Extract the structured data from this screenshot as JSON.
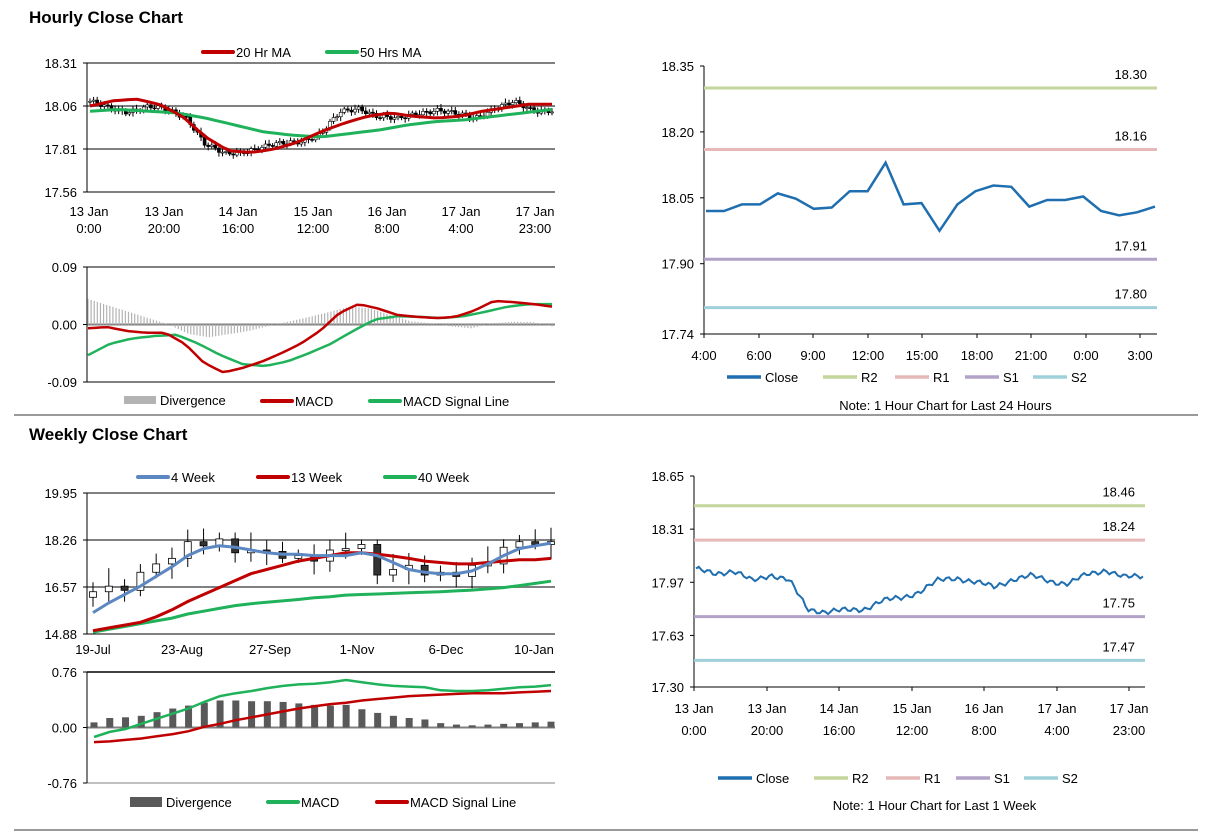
{
  "sections": {
    "hourly_title": "Hourly Close Chart",
    "weekly_title": "Weekly Close Chart"
  },
  "colors": {
    "red": "#c00000",
    "green": "#1fb25a",
    "blue": "#1f6fb0",
    "steel": "#5b87c2",
    "grid": "#808080",
    "r2": "#c3d69b",
    "r1": "#e6b9b8",
    "s1": "#b3a2c7",
    "s2": "#9fd0d9",
    "div_light": "#b3b3b3",
    "div_dark": "#595959"
  },
  "chart_data": [
    {
      "id": "hourly_price",
      "type": "candlestick",
      "title": "",
      "ylim": [
        17.56,
        18.31
      ],
      "yticks": [
        "18.31",
        "18.06",
        "17.81",
        "17.56"
      ],
      "xticks": [
        [
          "13 Jan",
          "0:00"
        ],
        [
          "13 Jan",
          "20:00"
        ],
        [
          "14 Jan",
          "16:00"
        ],
        [
          "15 Jan",
          "12:00"
        ],
        [
          "16 Jan",
          "8:00"
        ],
        [
          "17 Jan",
          "4:00"
        ],
        [
          "17 Jan",
          "23:00"
        ]
      ],
      "legend": [
        {
          "name": "20 Hr MA",
          "color": "#c00000"
        },
        {
          "name": "50 Hrs MA",
          "color": "#1fb25a"
        }
      ],
      "close_anchors": [
        18.08,
        18.05,
        18.03,
        18.05,
        18.04,
        18.0,
        17.83,
        17.78,
        17.8,
        17.82,
        17.84,
        17.86,
        17.9,
        18.02,
        18.05,
        18.0,
        17.98,
        18.02,
        18.04,
        18.01,
        17.99,
        18.05,
        18.08,
        18.03,
        18.04
      ],
      "ma20_anchors": [
        18.06,
        18.09,
        18.1,
        18.07,
        18.0,
        17.88,
        17.8,
        17.79,
        17.81,
        17.85,
        17.91,
        17.96,
        18.0,
        18.02,
        18.0,
        17.99,
        18.0,
        18.03,
        18.05,
        18.07,
        18.07
      ],
      "ma50_anchors": [
        18.03,
        18.04,
        18.03,
        18.02,
        17.99,
        17.95,
        17.91,
        17.89,
        17.88,
        17.9,
        17.92,
        17.95,
        17.97,
        17.98,
        18.0,
        18.02,
        18.04
      ]
    },
    {
      "id": "hourly_macd",
      "type": "line",
      "ylim": [
        -0.09,
        0.09
      ],
      "yticks": [
        "0.09",
        "0.00",
        "-0.09"
      ],
      "legend": [
        {
          "name": "Divergence",
          "color": "#b3b3b3"
        },
        {
          "name": "MACD",
          "color": "#c00000"
        },
        {
          "name": "MACD Signal Line",
          "color": "#1fb25a"
        }
      ],
      "macd_anchors": [
        -0.006,
        -0.004,
        -0.01,
        -0.013,
        -0.013,
        -0.03,
        -0.06,
        -0.075,
        -0.068,
        -0.058,
        -0.045,
        -0.03,
        -0.01,
        0.018,
        0.032,
        0.025,
        0.015,
        0.012,
        0.01,
        0.012,
        0.022,
        0.037,
        0.035,
        0.032,
        0.028
      ],
      "signal_anchors": [
        -0.048,
        -0.03,
        -0.022,
        -0.018,
        -0.016,
        -0.03,
        -0.048,
        -0.062,
        -0.065,
        -0.058,
        -0.045,
        -0.03,
        -0.01,
        0.008,
        0.013,
        0.012,
        0.01,
        0.013,
        0.02,
        0.028,
        0.032,
        0.032
      ],
      "divergence_anchors": [
        0.04,
        0.03,
        0.02,
        0.01,
        0.0,
        -0.015,
        -0.02,
        -0.015,
        -0.01,
        -0.002,
        0.005,
        0.012,
        0.02,
        0.028,
        0.025,
        0.015,
        0.005,
        0.002,
        -0.003,
        -0.006,
        0.002,
        0.004,
        0.004,
        -0.003
      ]
    },
    {
      "id": "hourly_sr",
      "type": "line",
      "ylim": [
        17.74,
        18.35
      ],
      "yticks": [
        "18.35",
        "18.20",
        "18.05",
        "17.90",
        "17.74"
      ],
      "xticks": [
        "4:00",
        "6:00",
        "9:00",
        "12:00",
        "15:00",
        "18:00",
        "21:00",
        "0:00",
        "3:00"
      ],
      "levels": [
        {
          "name": "R2",
          "value": 18.3,
          "label": "18.30"
        },
        {
          "name": "R1",
          "value": 18.16,
          "label": "18.16"
        },
        {
          "name": "S1",
          "value": 17.91,
          "label": "17.91"
        },
        {
          "name": "S2",
          "value": 17.8,
          "label": "17.80"
        }
      ],
      "close": [
        18.02,
        18.02,
        18.035,
        18.035,
        18.06,
        18.048,
        18.025,
        18.028,
        18.065,
        18.065,
        18.13,
        18.035,
        18.038,
        17.975,
        18.035,
        18.065,
        18.078,
        18.075,
        18.03,
        18.045,
        18.045,
        18.053,
        18.02,
        18.01,
        18.017,
        18.03
      ],
      "legend": [
        "Close",
        "R2",
        "R1",
        "S1",
        "S2"
      ],
      "note": "Note: 1 Hour Chart for Last 24 Hours"
    },
    {
      "id": "weekly_price",
      "type": "candlestick",
      "ylim": [
        14.88,
        19.95
      ],
      "yticks": [
        "19.95",
        "18.26",
        "16.57",
        "14.88"
      ],
      "xticks": [
        "19-Jul",
        "23-Aug",
        "27-Sep",
        "1-Nov",
        "6-Dec",
        "10-Jan"
      ],
      "legend": [
        {
          "name": "4 Week",
          "color": "#5b87c2"
        },
        {
          "name": "13 Week",
          "color": "#c00000"
        },
        {
          "name": "40 Week",
          "color": "#1fb25a"
        }
      ],
      "close": [
        16.4,
        16.6,
        16.45,
        17.1,
        17.4,
        17.6,
        18.2,
        18.05,
        18.3,
        17.8,
        17.9,
        17.85,
        17.6,
        17.7,
        17.5,
        17.9,
        17.95,
        18.1,
        17.0,
        17.2,
        17.35,
        17.0,
        17.1,
        16.95,
        17.35,
        17.4,
        18.0,
        18.2,
        18.1,
        18.2
      ],
      "ma4": [
        15.65,
        16.0,
        16.3,
        16.6,
        16.95,
        17.3,
        17.7,
        17.95,
        18.05,
        18.0,
        17.9,
        17.8,
        17.75,
        17.75,
        17.7,
        17.7,
        17.7,
        17.8,
        17.7,
        17.45,
        17.2,
        17.1,
        17.05,
        17.05,
        17.15,
        17.4,
        17.7,
        17.95,
        18.05,
        18.15
      ],
      "ma13": [
        15.0,
        15.1,
        15.2,
        15.3,
        15.5,
        15.75,
        16.05,
        16.3,
        16.55,
        16.8,
        17.05,
        17.2,
        17.35,
        17.5,
        17.6,
        17.7,
        17.8,
        17.8,
        17.75,
        17.68,
        17.6,
        17.5,
        17.45,
        17.4,
        17.4,
        17.45,
        17.5,
        17.55,
        17.55,
        17.6
      ],
      "ma40": [
        14.95,
        15.05,
        15.15,
        15.25,
        15.35,
        15.45,
        15.6,
        15.7,
        15.8,
        15.9,
        15.97,
        16.02,
        16.07,
        16.12,
        16.18,
        16.22,
        16.28,
        16.3,
        16.32,
        16.34,
        16.36,
        16.38,
        16.4,
        16.43,
        16.46,
        16.5,
        16.55,
        16.62,
        16.7,
        16.78
      ]
    },
    {
      "id": "weekly_macd",
      "type": "line",
      "ylim": [
        -0.76,
        0.76
      ],
      "yticks": [
        "0.76",
        "0.00",
        "-0.76"
      ],
      "legend": [
        {
          "name": "Divergence",
          "color": "#595959"
        },
        {
          "name": "MACD",
          "color": "#1fb25a"
        },
        {
          "name": "MACD Signal Line",
          "color": "#c00000"
        }
      ],
      "macd": [
        -0.13,
        -0.06,
        -0.02,
        0.05,
        0.12,
        0.19,
        0.26,
        0.35,
        0.43,
        0.47,
        0.5,
        0.54,
        0.57,
        0.59,
        0.6,
        0.62,
        0.65,
        0.62,
        0.59,
        0.57,
        0.56,
        0.55,
        0.51,
        0.5,
        0.5,
        0.51,
        0.53,
        0.55,
        0.56,
        0.58
      ],
      "signal": [
        -0.2,
        -0.19,
        -0.17,
        -0.15,
        -0.12,
        -0.09,
        -0.05,
        0.01,
        0.05,
        0.1,
        0.14,
        0.18,
        0.22,
        0.26,
        0.29,
        0.32,
        0.34,
        0.37,
        0.39,
        0.41,
        0.43,
        0.44,
        0.45,
        0.46,
        0.47,
        0.47,
        0.47,
        0.48,
        0.49,
        0.5
      ],
      "divergence": [
        0.07,
        0.13,
        0.14,
        0.16,
        0.21,
        0.26,
        0.3,
        0.34,
        0.37,
        0.37,
        0.36,
        0.36,
        0.35,
        0.33,
        0.31,
        0.3,
        0.31,
        0.25,
        0.2,
        0.16,
        0.13,
        0.11,
        0.06,
        0.04,
        0.03,
        0.04,
        0.05,
        0.06,
        0.07,
        0.08
      ]
    },
    {
      "id": "weekly_sr",
      "type": "line",
      "ylim": [
        17.3,
        18.65
      ],
      "yticks": [
        "18.65",
        "18.31",
        "17.97",
        "17.63",
        "17.30"
      ],
      "xticks": [
        [
          "13 Jan",
          "0:00"
        ],
        [
          "13 Jan",
          "20:00"
        ],
        [
          "14 Jan",
          "16:00"
        ],
        [
          "15 Jan",
          "12:00"
        ],
        [
          "16 Jan",
          "8:00"
        ],
        [
          "17 Jan",
          "4:00"
        ],
        [
          "17 Jan",
          "23:00"
        ]
      ],
      "levels": [
        {
          "name": "R2",
          "value": 18.46,
          "label": "18.46"
        },
        {
          "name": "R1",
          "value": 18.24,
          "label": "18.24"
        },
        {
          "name": "S1",
          "value": 17.75,
          "label": "17.75"
        },
        {
          "name": "S2",
          "value": 17.47,
          "label": "17.47"
        }
      ],
      "close_anchors": [
        18.05,
        18.03,
        18.04,
        17.98,
        18.02,
        17.98,
        17.8,
        17.78,
        17.79,
        17.8,
        17.85,
        17.87,
        17.91,
        17.98,
        18.0,
        17.97,
        17.94,
        17.99,
        18.01,
        17.98,
        17.96,
        18.02,
        18.05,
        18.0,
        18.01
      ],
      "legend": [
        "Close",
        "R2",
        "R1",
        "S1",
        "S2"
      ],
      "note": "Note: 1 Hour Chart for Last 1 Week"
    }
  ]
}
